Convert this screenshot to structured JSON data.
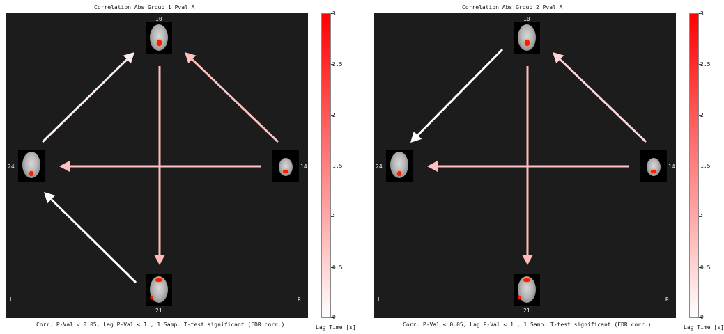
{
  "panels": [
    {
      "title": "Correlation Abs Group 1 Pval A",
      "footer": "Corr. P-Val < 0.05, Lag P-Val < 1 , 1 Samp. T-test significant (FDR corr.)",
      "nodes": {
        "top": "10",
        "left": "24",
        "right": "14",
        "bottom": "21"
      },
      "side_left": "L",
      "side_right": "R",
      "edges": [
        {
          "from": "24",
          "to": "10",
          "color": "#ffeeee"
        },
        {
          "from": "14",
          "to": "10",
          "color": "#ffc2c2"
        },
        {
          "from": "10",
          "to": "21",
          "color": "#ffbcbc"
        },
        {
          "from": "14",
          "to": "24",
          "color": "#ffc2c2"
        },
        {
          "from": "21",
          "to": "24",
          "color": "#ffffff"
        }
      ]
    },
    {
      "title": "Correlation Abs Group 2 Pval A",
      "footer": "Corr. P-Val < 0.05, Lag P-Val < 1 , 1 Samp. T-test significant (FDR corr.)",
      "nodes": {
        "top": "10",
        "left": "24",
        "right": "14",
        "bottom": "21"
      },
      "side_left": "L",
      "side_right": "R",
      "edges": [
        {
          "from": "10",
          "to": "24",
          "color": "#ffffff"
        },
        {
          "from": "14",
          "to": "10",
          "color": "#ffd6d6"
        },
        {
          "from": "10",
          "to": "21",
          "color": "#ffbcbc"
        },
        {
          "from": "14",
          "to": "24",
          "color": "#ffc2c2"
        }
      ]
    }
  ],
  "colorbar": {
    "label": "Lag Time [s]",
    "ticks": [
      "3",
      "2.5",
      "2",
      "1.5",
      "1",
      "0.5",
      "0"
    ],
    "colors": {
      "high": "#ff0000",
      "low": "#ffffff"
    }
  }
}
